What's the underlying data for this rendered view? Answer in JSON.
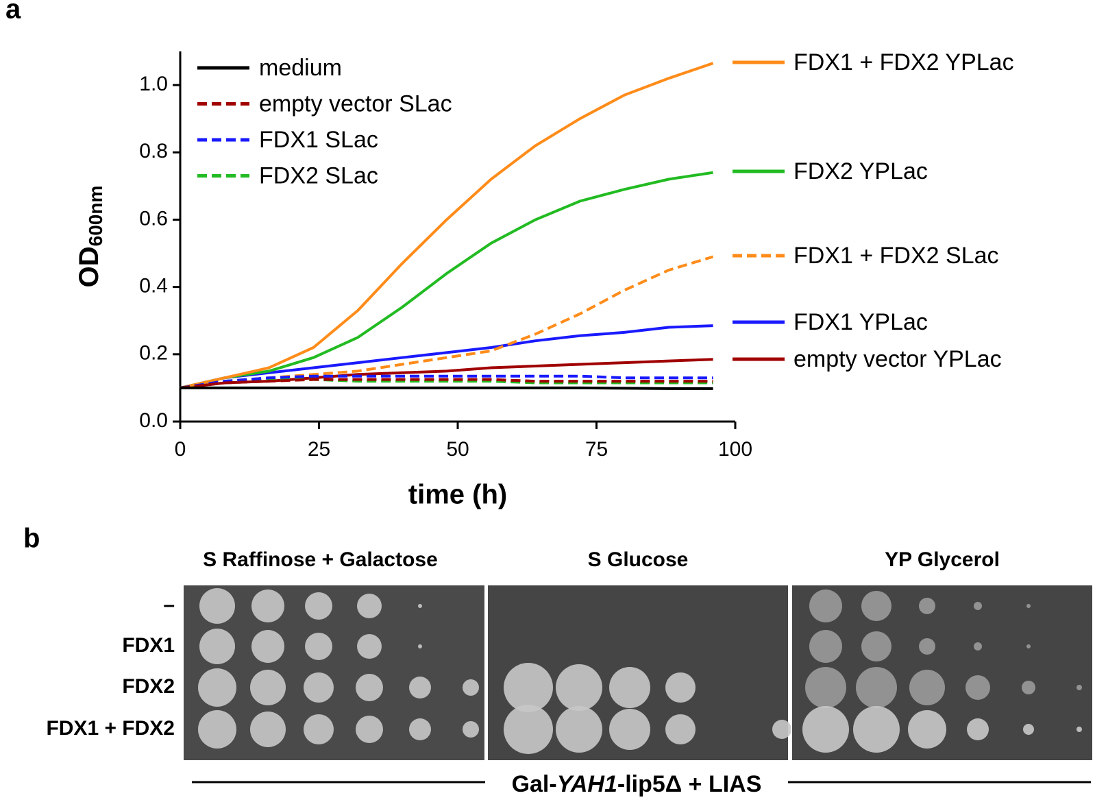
{
  "chart_data": {
    "type": "line",
    "panel_label": "a",
    "xlabel": "time (h)",
    "ylabel": "OD",
    "ylabel_sub": "600nm",
    "x": [
      0,
      8,
      16,
      24,
      32,
      40,
      48,
      56,
      64,
      72,
      80,
      88,
      96
    ],
    "xlim": [
      0,
      100
    ],
    "xticks": [
      0,
      25,
      50,
      75,
      100
    ],
    "ylim": [
      0,
      1.1
    ],
    "yticks": [
      {
        "value": 0,
        "label": "0.0"
      },
      {
        "value": 0.2,
        "label": "0.2"
      },
      {
        "value": 0.4,
        "label": "0.4"
      },
      {
        "value": 0.6,
        "label": "0.6"
      },
      {
        "value": 0.8,
        "label": "0.8"
      },
      {
        "value": 1.0,
        "label": "1.0"
      }
    ],
    "series": [
      {
        "name": "medium",
        "color": "#000000",
        "dash": false,
        "legend": "upper left",
        "values": [
          0.1,
          0.1,
          0.1,
          0.1,
          0.1,
          0.1,
          0.1,
          0.1,
          0.1,
          0.1,
          0.099,
          0.098,
          0.098
        ]
      },
      {
        "name": "empty vector SLac",
        "color": "#a00000",
        "dash": true,
        "legend": "upper left",
        "values": [
          0.1,
          0.115,
          0.12,
          0.125,
          0.125,
          0.125,
          0.125,
          0.125,
          0.12,
          0.12,
          0.12,
          0.12,
          0.12
        ]
      },
      {
        "name": "FDX1 SLac",
        "color": "#1a1aff",
        "dash": true,
        "legend": "upper left",
        "values": [
          0.1,
          0.12,
          0.13,
          0.135,
          0.135,
          0.135,
          0.135,
          0.135,
          0.135,
          0.135,
          0.13,
          0.13,
          0.13
        ]
      },
      {
        "name": "FDX2 SLac",
        "color": "#22bb22",
        "dash": true,
        "legend": "upper left",
        "values": [
          0.1,
          0.12,
          0.125,
          0.125,
          0.12,
          0.12,
          0.12,
          0.12,
          0.115,
          0.115,
          0.115,
          0.115,
          0.115
        ]
      },
      {
        "name": "FDX1 + FDX2 YPLac",
        "color": "#ff8c1a",
        "dash": false,
        "legend": "right",
        "values": [
          0.1,
          0.13,
          0.16,
          0.22,
          0.33,
          0.47,
          0.6,
          0.72,
          0.82,
          0.9,
          0.97,
          1.02,
          1.065
        ]
      },
      {
        "name": "FDX2 YPLac",
        "color": "#22bb22",
        "dash": false,
        "legend": "right",
        "values": [
          0.1,
          0.13,
          0.15,
          0.19,
          0.25,
          0.34,
          0.44,
          0.53,
          0.6,
          0.655,
          0.69,
          0.72,
          0.74
        ]
      },
      {
        "name": "FDX1 + FDX2 SLac",
        "color": "#ff8c1a",
        "dash": true,
        "legend": "right",
        "values": [
          0.1,
          0.12,
          0.13,
          0.14,
          0.15,
          0.17,
          0.19,
          0.21,
          0.26,
          0.32,
          0.39,
          0.45,
          0.49
        ]
      },
      {
        "name": "FDX1 YPLac",
        "color": "#1a1aff",
        "dash": false,
        "legend": "right",
        "values": [
          0.1,
          0.13,
          0.145,
          0.16,
          0.175,
          0.19,
          0.205,
          0.22,
          0.24,
          0.255,
          0.265,
          0.28,
          0.285
        ]
      },
      {
        "name": "empty vector YPLac",
        "color": "#a00000",
        "dash": false,
        "legend": "right",
        "values": [
          0.1,
          0.115,
          0.12,
          0.13,
          0.14,
          0.145,
          0.15,
          0.16,
          0.165,
          0.17,
          0.175,
          0.18,
          0.185
        ]
      }
    ]
  },
  "panel_b": {
    "panel_label": "b",
    "columns": [
      "S Raffinose + Galactose",
      "S Glucose",
      "YP Glycerol"
    ],
    "rows": [
      "–",
      "FDX1",
      "FDX2",
      "FDX1 + FDX2"
    ],
    "strain": [
      "Gal-",
      "YAH1",
      "-lip5Δ + LIAS"
    ]
  }
}
